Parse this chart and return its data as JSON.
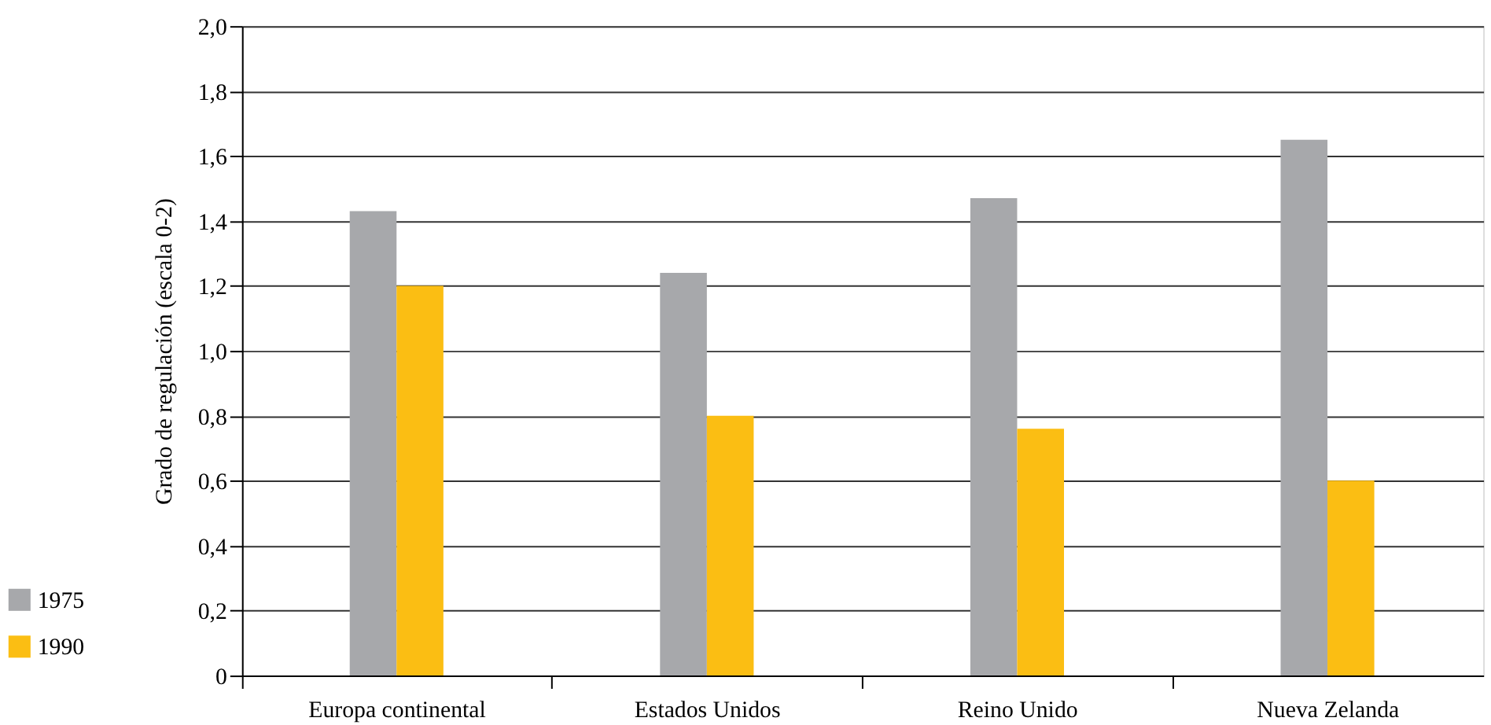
{
  "chart_data": {
    "type": "bar",
    "ylabel": "Grado de regulación (escala 0-2)",
    "categories": [
      "Europa continental",
      "Estados Unidos",
      "Reino Unido",
      "Nueva Zelanda"
    ],
    "series": [
      {
        "name": "1975",
        "color": "#a7a8ab",
        "values": [
          1.43,
          1.24,
          1.47,
          1.65
        ]
      },
      {
        "name": "1990",
        "color": "#fbbe13",
        "values": [
          1.2,
          0.8,
          0.76,
          0.6
        ]
      }
    ],
    "ylim": [
      0,
      2
    ],
    "yticks": [
      0,
      {
        "value": 0.2,
        "label": "0,2"
      },
      {
        "value": 0.4,
        "label": "0,4"
      },
      {
        "value": 0.6,
        "label": "0,6"
      },
      {
        "value": 0.8,
        "label": "0,8"
      },
      {
        "value": 1.0,
        "label": "1,0"
      },
      {
        "value": 1.2,
        "label": "1,2"
      },
      {
        "value": 1.4,
        "label": "1,4"
      },
      {
        "value": 1.6,
        "label": "1,6"
      },
      {
        "value": 1.8,
        "label": "1,8"
      },
      {
        "value": 2.0,
        "label": "2,0"
      }
    ],
    "grid": "y",
    "legend": "bottom left"
  }
}
